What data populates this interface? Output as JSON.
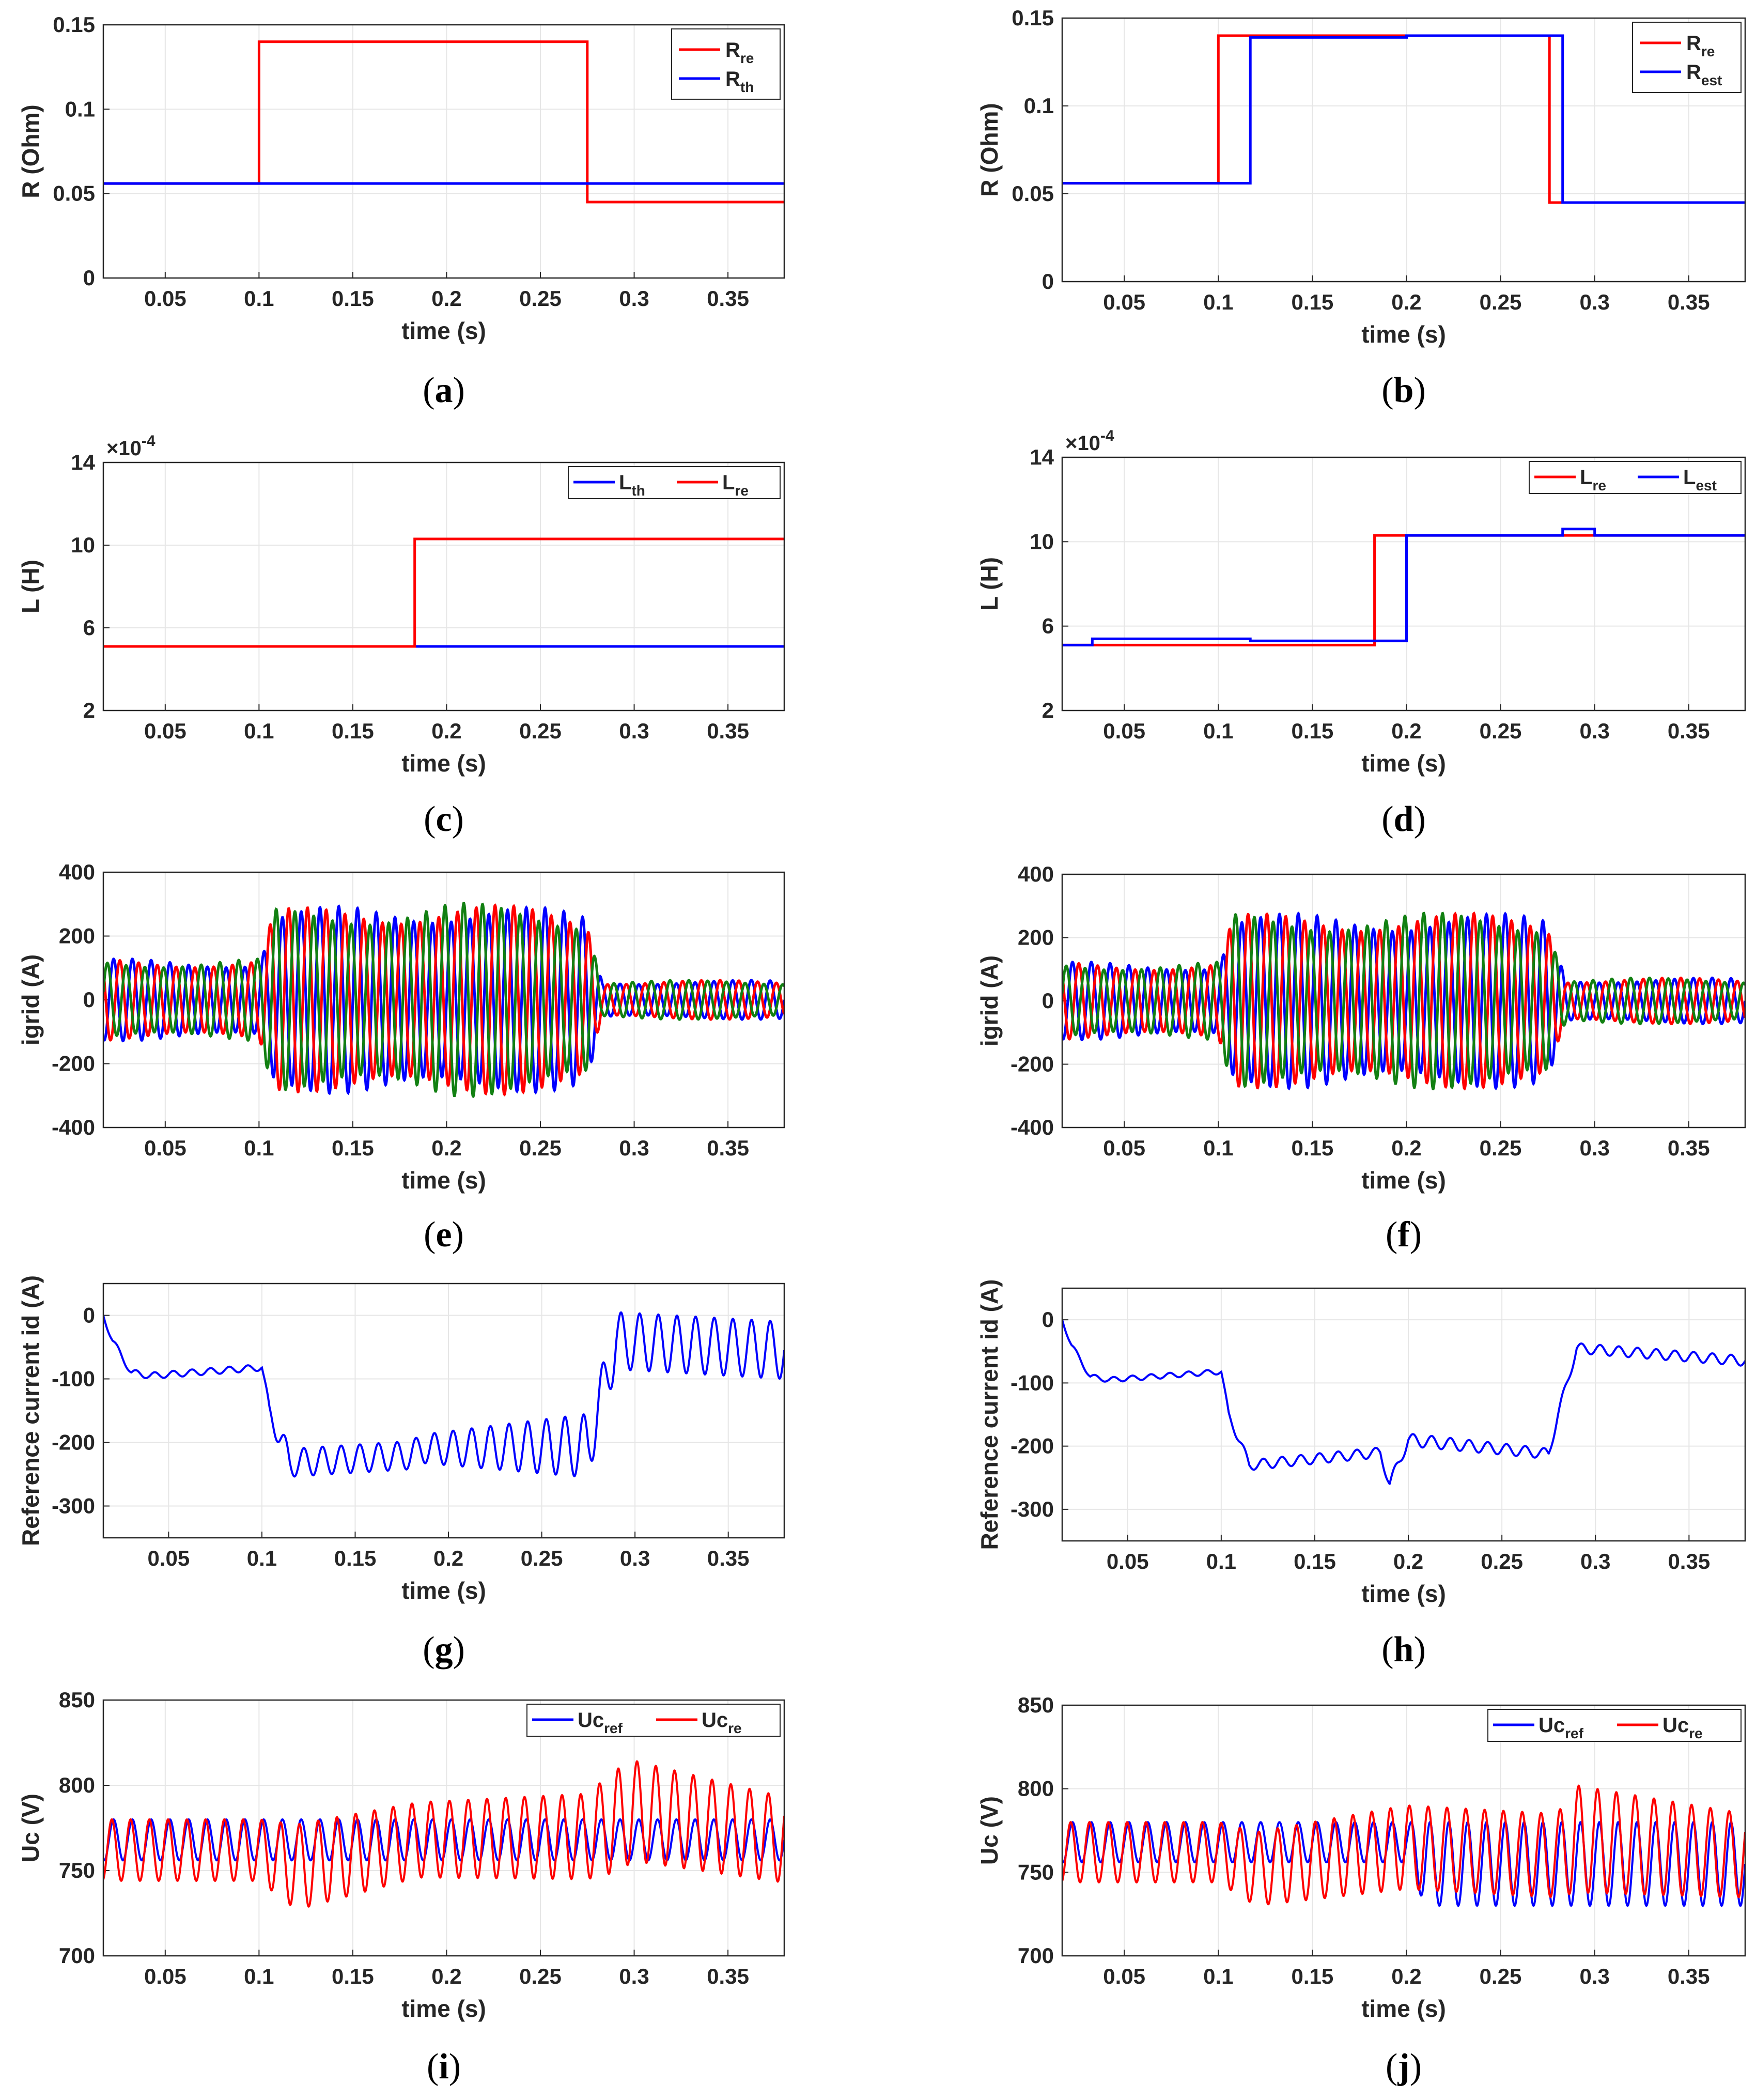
{
  "chart_data": [
    {
      "id": "a",
      "type": "line",
      "caption": "a",
      "xlabel": "time (s)",
      "ylabel": "R (Ohm)",
      "xlim": [
        0.017,
        0.38
      ],
      "ylim": [
        0,
        0.15
      ],
      "xticks": [
        0.05,
        0.1,
        0.15,
        0.2,
        0.25,
        0.3,
        0.35
      ],
      "xtick_labels": [
        "0.05",
        "0.1",
        "0.15",
        "0.2",
        "0.25",
        "0.3",
        "0.35"
      ],
      "yticks": [
        0,
        0.05,
        0.1,
        0.15
      ],
      "ytick_labels": [
        "0",
        "0.05",
        "0.1",
        "0.15"
      ],
      "legend_position": "top-right",
      "legend_layout": "vertical",
      "series": [
        {
          "name": "R",
          "sub": "re",
          "color": "#ff0000",
          "x": [
            0.017,
            0.1,
            0.1,
            0.275,
            0.275,
            0.38
          ],
          "y": [
            0.056,
            0.056,
            0.14,
            0.14,
            0.045,
            0.045
          ]
        },
        {
          "name": "R",
          "sub": "th",
          "color": "#0000ff",
          "x": [
            0.017,
            0.38
          ],
          "y": [
            0.056,
            0.056
          ]
        }
      ]
    },
    {
      "id": "b",
      "type": "line",
      "caption": "b",
      "xlabel": "time (s)",
      "ylabel": "R (Ohm)",
      "xlim": [
        0.017,
        0.38
      ],
      "ylim": [
        0,
        0.15
      ],
      "xticks": [
        0.05,
        0.1,
        0.15,
        0.2,
        0.25,
        0.3,
        0.35
      ],
      "xtick_labels": [
        "0.05",
        "0.1",
        "0.15",
        "0.2",
        "0.25",
        "0.3",
        "0.35"
      ],
      "yticks": [
        0,
        0.05,
        0.1,
        0.15
      ],
      "ytick_labels": [
        "0",
        "0.05",
        "0.1",
        "0.15"
      ],
      "legend_position": "top-right",
      "legend_layout": "vertical",
      "series": [
        {
          "name": "R",
          "sub": "re",
          "color": "#ff0000",
          "x": [
            0.017,
            0.1,
            0.1,
            0.276,
            0.276,
            0.38
          ],
          "y": [
            0.056,
            0.056,
            0.14,
            0.14,
            0.045,
            0.045
          ]
        },
        {
          "name": "R",
          "sub": "est",
          "color": "#0000ff",
          "x": [
            0.017,
            0.117,
            0.117,
            0.2,
            0.2,
            0.283,
            0.283,
            0.38
          ],
          "y": [
            0.056,
            0.056,
            0.139,
            0.139,
            0.14,
            0.14,
            0.045,
            0.045
          ]
        }
      ]
    },
    {
      "id": "c",
      "type": "line",
      "caption": "c",
      "xlabel": "time (s)",
      "ylabel": "L (H)",
      "xlim": [
        0.017,
        0.38
      ],
      "ylim": [
        2,
        14
      ],
      "xticks": [
        0.05,
        0.1,
        0.15,
        0.2,
        0.25,
        0.3,
        0.35
      ],
      "xtick_labels": [
        "0.05",
        "0.1",
        "0.15",
        "0.2",
        "0.25",
        "0.3",
        "0.35"
      ],
      "yticks": [
        2,
        6,
        10,
        14
      ],
      "ytick_labels": [
        "2",
        "6",
        "10",
        "14"
      ],
      "exponent": {
        "base": "×10",
        "power": "-4"
      },
      "legend_position": "top-right",
      "legend_layout": "horizontal",
      "series": [
        {
          "name": "L",
          "sub": "th",
          "color": "#0000ff",
          "x": [
            0.017,
            0.38
          ],
          "y": [
            5.1,
            5.1
          ]
        },
        {
          "name": "L",
          "sub": "re",
          "color": "#ff0000",
          "x": [
            0.017,
            0.183,
            0.183,
            0.38
          ],
          "y": [
            5.1,
            5.1,
            10.3,
            10.3
          ]
        }
      ]
    },
    {
      "id": "d",
      "type": "line",
      "caption": "d",
      "xlabel": "time (s)",
      "ylabel": "L (H)",
      "xlim": [
        0.017,
        0.38
      ],
      "ylim": [
        2,
        14
      ],
      "xticks": [
        0.05,
        0.1,
        0.15,
        0.2,
        0.25,
        0.3,
        0.35
      ],
      "xtick_labels": [
        "0.05",
        "0.1",
        "0.15",
        "0.2",
        "0.25",
        "0.3",
        "0.35"
      ],
      "yticks": [
        2,
        6,
        10,
        14
      ],
      "ytick_labels": [
        "2",
        "6",
        "10",
        "14"
      ],
      "exponent": {
        "base": "×10",
        "power": "-4"
      },
      "legend_position": "top-right",
      "legend_layout": "horizontal",
      "series": [
        {
          "name": "L",
          "sub": "re",
          "color": "#ff0000",
          "x": [
            0.017,
            0.183,
            0.183,
            0.38
          ],
          "y": [
            5.1,
            5.1,
            10.3,
            10.3
          ]
        },
        {
          "name": "L",
          "sub": "est",
          "color": "#0000ff",
          "x": [
            0.017,
            0.033,
            0.033,
            0.117,
            0.117,
            0.2,
            0.2,
            0.283,
            0.283,
            0.3,
            0.3,
            0.38
          ],
          "y": [
            5.1,
            5.1,
            5.4,
            5.4,
            5.3,
            5.3,
            10.3,
            10.3,
            10.6,
            10.6,
            10.3,
            10.3
          ]
        }
      ]
    },
    {
      "id": "e",
      "type": "line",
      "caption": "e",
      "xlabel": "time (s)",
      "ylabel": "igrid (A)",
      "xlim": [
        0.017,
        0.38
      ],
      "ylim": [
        -400,
        400
      ],
      "xticks": [
        0.05,
        0.1,
        0.15,
        0.2,
        0.25,
        0.3,
        0.35
      ],
      "xtick_labels": [
        "0.05",
        "0.1",
        "0.15",
        "0.2",
        "0.25",
        "0.3",
        "0.35"
      ],
      "yticks": [
        -400,
        -200,
        0,
        200,
        400
      ],
      "ytick_labels": [
        "-400",
        "-200",
        "0",
        "200",
        "400"
      ],
      "waveform": {
        "kind": "three_phase",
        "frequency_hz": 100,
        "phase_colors": [
          "#0000ff",
          "#ff0000",
          "#128012"
        ],
        "amplitude_envelope": {
          "t": [
            0.017,
            0.1,
            0.108,
            0.2,
            0.275,
            0.283,
            0.38
          ],
          "a": [
            115,
            115,
            255,
            275,
            250,
            55,
            55
          ]
        }
      }
    },
    {
      "id": "f",
      "type": "line",
      "caption": "f",
      "xlabel": "time (s)",
      "ylabel": "igrid (A)",
      "xlim": [
        0.017,
        0.38
      ],
      "ylim": [
        -400,
        400
      ],
      "xticks": [
        0.05,
        0.1,
        0.15,
        0.2,
        0.25,
        0.3,
        0.35
      ],
      "xtick_labels": [
        "0.05",
        "0.1",
        "0.15",
        "0.2",
        "0.25",
        "0.3",
        "0.35"
      ],
      "yticks": [
        -400,
        -200,
        0,
        200,
        400
      ],
      "ytick_labels": [
        "-400",
        "-200",
        "0",
        "200",
        "400"
      ],
      "waveform": {
        "kind": "three_phase",
        "frequency_hz": 100,
        "phase_colors": [
          "#0000ff",
          "#ff0000",
          "#128012"
        ],
        "amplitude_envelope": {
          "t": [
            0.017,
            0.1,
            0.108,
            0.185,
            0.275,
            0.285,
            0.38
          ],
          "a": [
            110,
            110,
            245,
            250,
            245,
            65,
            65
          ]
        }
      }
    },
    {
      "id": "g",
      "type": "line",
      "caption": "g",
      "xlabel": "time (s)",
      "ylabel": "Reference current id (A)",
      "xlim": [
        0.015,
        0.38
      ],
      "ylim": [
        -350,
        50
      ],
      "xticks": [
        0.05,
        0.1,
        0.15,
        0.2,
        0.25,
        0.3,
        0.35
      ],
      "xtick_labels": [
        "0.05",
        "0.1",
        "0.15",
        "0.2",
        "0.25",
        "0.3",
        "0.35"
      ],
      "yticks": [
        -300,
        -200,
        -100,
        0
      ],
      "ytick_labels": [
        "-300",
        "-200",
        "-100",
        "0"
      ],
      "waveform": {
        "kind": "single",
        "color": "#0000ff",
        "frequency_hz": 100,
        "mean_envelope": {
          "t": [
            0.015,
            0.02,
            0.03,
            0.04,
            0.1,
            0.104,
            0.115,
            0.18,
            0.185,
            0.275,
            0.28,
            0.29,
            0.38
          ],
          "v": [
            0,
            -40,
            -90,
            -95,
            -82,
            -150,
            -232,
            -220,
            -210,
            -205,
            -150,
            -40,
            -55
          ]
        },
        "ripple_envelope": {
          "t": [
            0.015,
            0.1,
            0.11,
            0.185,
            0.275,
            0.28,
            0.38
          ],
          "r": [
            5,
            5,
            22,
            22,
            50,
            45,
            45
          ]
        }
      }
    },
    {
      "id": "h",
      "type": "line",
      "caption": "h",
      "xlabel": "time (s)",
      "ylabel": "Reference current id (A)",
      "xlim": [
        0.015,
        0.38
      ],
      "ylim": [
        -350,
        50
      ],
      "xticks": [
        0.05,
        0.1,
        0.15,
        0.2,
        0.25,
        0.3,
        0.35
      ],
      "xtick_labels": [
        "0.05",
        "0.1",
        "0.15",
        "0.2",
        "0.25",
        "0.3",
        "0.35"
      ],
      "yticks": [
        -300,
        -200,
        -100,
        0
      ],
      "ytick_labels": [
        "-300",
        "-200",
        "-100",
        "0"
      ],
      "waveform": {
        "kind": "single",
        "color": "#0000ff",
        "frequency_hz": 100,
        "mean_envelope": {
          "t": [
            0.015,
            0.02,
            0.03,
            0.04,
            0.1,
            0.104,
            0.115,
            0.185,
            0.19,
            0.2,
            0.275,
            0.28,
            0.29,
            0.38
          ],
          "v": [
            0,
            -40,
            -90,
            -95,
            -82,
            -150,
            -230,
            -210,
            -260,
            -190,
            -212,
            -150,
            -45,
            -65
          ]
        },
        "ripple_envelope": {
          "t": [
            0.015,
            0.1,
            0.11,
            0.185,
            0.205,
            0.28,
            0.38
          ],
          "r": [
            4,
            4,
            8,
            8,
            10,
            8,
            8
          ]
        }
      }
    },
    {
      "id": "i",
      "type": "line",
      "caption": "i",
      "xlabel": "time (s)",
      "ylabel": "Uc (V)",
      "xlim": [
        0.017,
        0.38
      ],
      "ylim": [
        700,
        850
      ],
      "xticks": [
        0.05,
        0.1,
        0.15,
        0.2,
        0.25,
        0.3,
        0.35
      ],
      "xtick_labels": [
        "0.05",
        "0.1",
        "0.15",
        "0.2",
        "0.25",
        "0.3",
        "0.35"
      ],
      "yticks": [
        700,
        750,
        800,
        850
      ],
      "ytick_labels": [
        "700",
        "750",
        "800",
        "850"
      ],
      "legend_position": "top-right",
      "legend_layout": "horizontal",
      "series": [
        {
          "name": "Uc",
          "sub": "ref",
          "color": "#0000ff",
          "mean": 768,
          "amplitude": 12,
          "frequency_hz": 100
        },
        {
          "name": "Uc",
          "sub": "re",
          "color": "#ff0000",
          "mean_envelope": {
            "t": [
              0.017,
              0.1,
              0.12,
              0.185,
              0.275,
              0.3,
              0.38
            ],
            "v": [
              762,
              762,
              752,
              768,
              770,
              785,
              768
            ]
          },
          "amplitude_envelope": {
            "t": [
              0.017,
              0.1,
              0.12,
              0.185,
              0.275,
              0.29,
              0.38
            ],
            "a": [
              18,
              18,
              25,
              22,
              25,
              30,
              25
            ]
          },
          "frequency_hz": 100
        }
      ]
    },
    {
      "id": "j",
      "type": "line",
      "caption": "j",
      "xlabel": "time (s)",
      "ylabel": "Uc (V)",
      "xlim": [
        0.017,
        0.38
      ],
      "ylim": [
        700,
        850
      ],
      "xticks": [
        0.05,
        0.1,
        0.15,
        0.2,
        0.25,
        0.3,
        0.35
      ],
      "xtick_labels": [
        "0.05",
        "0.1",
        "0.15",
        "0.2",
        "0.25",
        "0.3",
        "0.35"
      ],
      "yticks": [
        700,
        750,
        800,
        850
      ],
      "ytick_labels": [
        "700",
        "750",
        "800",
        "850"
      ],
      "legend_position": "top-right",
      "legend_layout": "horizontal",
      "series": [
        {
          "name": "Uc",
          "sub": "ref",
          "color": "#0000ff",
          "mean_envelope": {
            "t": [
              0.017,
              0.2,
              0.21,
              0.38
            ],
            "v": [
              768,
              768,
              755,
              755
            ]
          },
          "amplitude_envelope": {
            "t": [
              0.017,
              0.2,
              0.21,
              0.38
            ],
            "a": [
              12,
              12,
              25,
              25
            ]
          },
          "frequency_hz": 100
        },
        {
          "name": "Uc",
          "sub": "re",
          "color": "#ff0000",
          "mean_envelope": {
            "t": [
              0.017,
              0.1,
              0.12,
              0.2,
              0.28,
              0.29,
              0.38
            ],
            "v": [
              762,
              762,
              752,
              765,
              760,
              770,
              760
            ]
          },
          "amplitude_envelope": {
            "t": [
              0.017,
              0.1,
              0.12,
              0.2,
              0.28,
              0.29,
              0.38
            ],
            "a": [
              18,
              18,
              22,
              25,
              25,
              32,
              25
            ]
          },
          "frequency_hz": 100
        }
      ]
    }
  ]
}
